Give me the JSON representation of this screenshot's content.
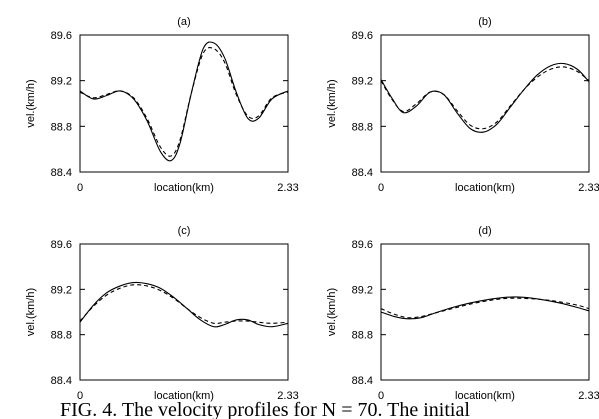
{
  "caption": "FIG. 4. The velocity profiles for N = 70. The initial",
  "chart_data": [
    {
      "type": "line",
      "title": "(a)",
      "xlabel": "location(km)",
      "ylabel": "vel.(km/h)",
      "xlim": [
        0,
        2.33
      ],
      "ylim": [
        88.4,
        89.6
      ],
      "xticks": [
        "0",
        "2.33"
      ],
      "yticks": [
        "88.4",
        "88.8",
        "89.2",
        "89.6"
      ],
      "series": [
        {
          "style": "solid",
          "x": [
            0,
            0.15,
            0.3,
            0.45,
            0.6,
            0.75,
            0.9,
            1.02,
            1.12,
            1.25,
            1.38,
            1.5,
            1.62,
            1.75,
            1.88,
            2.0,
            2.15,
            2.33
          ],
          "y": [
            89.11,
            89.04,
            89.07,
            89.11,
            89.04,
            88.85,
            88.58,
            88.5,
            88.65,
            89.1,
            89.48,
            89.53,
            89.4,
            89.1,
            88.87,
            88.87,
            89.04,
            89.11
          ]
        },
        {
          "style": "dashed",
          "x": [
            0,
            0.15,
            0.3,
            0.45,
            0.6,
            0.75,
            0.9,
            1.02,
            1.12,
            1.25,
            1.38,
            1.5,
            1.62,
            1.75,
            1.88,
            2.0,
            2.15,
            2.33
          ],
          "y": [
            89.1,
            89.05,
            89.08,
            89.11,
            89.05,
            88.87,
            88.62,
            88.54,
            88.68,
            89.1,
            89.44,
            89.48,
            89.36,
            89.08,
            88.89,
            88.89,
            89.05,
            89.1
          ]
        }
      ]
    },
    {
      "type": "line",
      "title": "(b)",
      "xlabel": "location(km)",
      "ylabel": "vel.(km/h)",
      "xlim": [
        0,
        2.33
      ],
      "ylim": [
        88.4,
        89.6
      ],
      "xticks": [
        "0",
        "2.33"
      ],
      "yticks": [
        "88.4",
        "88.8",
        "89.2",
        "89.6"
      ],
      "series": [
        {
          "style": "solid",
          "x": [
            0,
            0.12,
            0.25,
            0.4,
            0.55,
            0.7,
            0.85,
            1.0,
            1.15,
            1.3,
            1.45,
            1.6,
            1.75,
            1.9,
            2.05,
            2.2,
            2.33
          ],
          "y": [
            89.21,
            89.05,
            88.92,
            88.98,
            89.1,
            89.08,
            88.92,
            88.78,
            88.75,
            88.82,
            88.97,
            89.12,
            89.25,
            89.33,
            89.35,
            89.3,
            89.19
          ]
        },
        {
          "style": "dashed",
          "x": [
            0,
            0.12,
            0.25,
            0.4,
            0.55,
            0.7,
            0.85,
            1.0,
            1.15,
            1.3,
            1.45,
            1.6,
            1.75,
            1.9,
            2.05,
            2.2,
            2.33
          ],
          "y": [
            89.2,
            89.04,
            88.93,
            89.0,
            89.1,
            89.08,
            88.94,
            88.81,
            88.78,
            88.84,
            88.98,
            89.12,
            89.23,
            89.3,
            89.32,
            89.28,
            89.2
          ]
        }
      ]
    },
    {
      "type": "line",
      "title": "(c)",
      "xlabel": "location(km)",
      "ylabel": "vel.(km/h)",
      "xlim": [
        0,
        2.33
      ],
      "ylim": [
        88.4,
        89.6
      ],
      "xticks": [
        "0",
        "2.33"
      ],
      "yticks": [
        "88.4",
        "88.8",
        "89.2",
        "89.6"
      ],
      "series": [
        {
          "style": "solid",
          "x": [
            0,
            0.15,
            0.3,
            0.45,
            0.6,
            0.75,
            0.9,
            1.05,
            1.2,
            1.35,
            1.5,
            1.62,
            1.75,
            1.88,
            2.0,
            2.15,
            2.33
          ],
          "y": [
            88.91,
            89.06,
            89.17,
            89.23,
            89.26,
            89.25,
            89.21,
            89.13,
            89.03,
            88.93,
            88.87,
            88.89,
            88.93,
            88.93,
            88.89,
            88.87,
            88.9
          ]
        },
        {
          "style": "dashed",
          "x": [
            0,
            0.15,
            0.3,
            0.45,
            0.6,
            0.75,
            0.9,
            1.05,
            1.2,
            1.35,
            1.5,
            1.62,
            1.75,
            1.88,
            2.0,
            2.15,
            2.33
          ],
          "y": [
            88.92,
            89.05,
            89.15,
            89.21,
            89.24,
            89.23,
            89.19,
            89.12,
            89.03,
            88.95,
            88.9,
            88.91,
            88.92,
            88.92,
            88.91,
            88.9,
            88.91
          ]
        }
      ]
    },
    {
      "type": "line",
      "title": "(d)",
      "xlabel": "location(km)",
      "ylabel": "vel.(km/h)",
      "xlim": [
        0,
        2.33
      ],
      "ylim": [
        88.4,
        89.6
      ],
      "xticks": [
        "0",
        "2.33"
      ],
      "yticks": [
        "88.4",
        "88.8",
        "89.2",
        "89.6"
      ],
      "series": [
        {
          "style": "solid",
          "x": [
            0,
            0.15,
            0.3,
            0.45,
            0.6,
            0.8,
            1.0,
            1.2,
            1.4,
            1.6,
            1.8,
            2.0,
            2.2,
            2.33
          ],
          "y": [
            89.0,
            88.96,
            88.94,
            88.95,
            88.99,
            89.04,
            89.08,
            89.11,
            89.13,
            89.13,
            89.11,
            89.08,
            89.04,
            89.01
          ]
        },
        {
          "style": "dashed",
          "x": [
            0,
            0.15,
            0.3,
            0.45,
            0.6,
            0.8,
            1.0,
            1.2,
            1.4,
            1.6,
            1.8,
            2.0,
            2.2,
            2.33
          ],
          "y": [
            89.03,
            88.98,
            88.95,
            88.96,
            88.99,
            89.03,
            89.07,
            89.1,
            89.12,
            89.12,
            89.11,
            89.09,
            89.06,
            89.03
          ]
        }
      ]
    }
  ]
}
